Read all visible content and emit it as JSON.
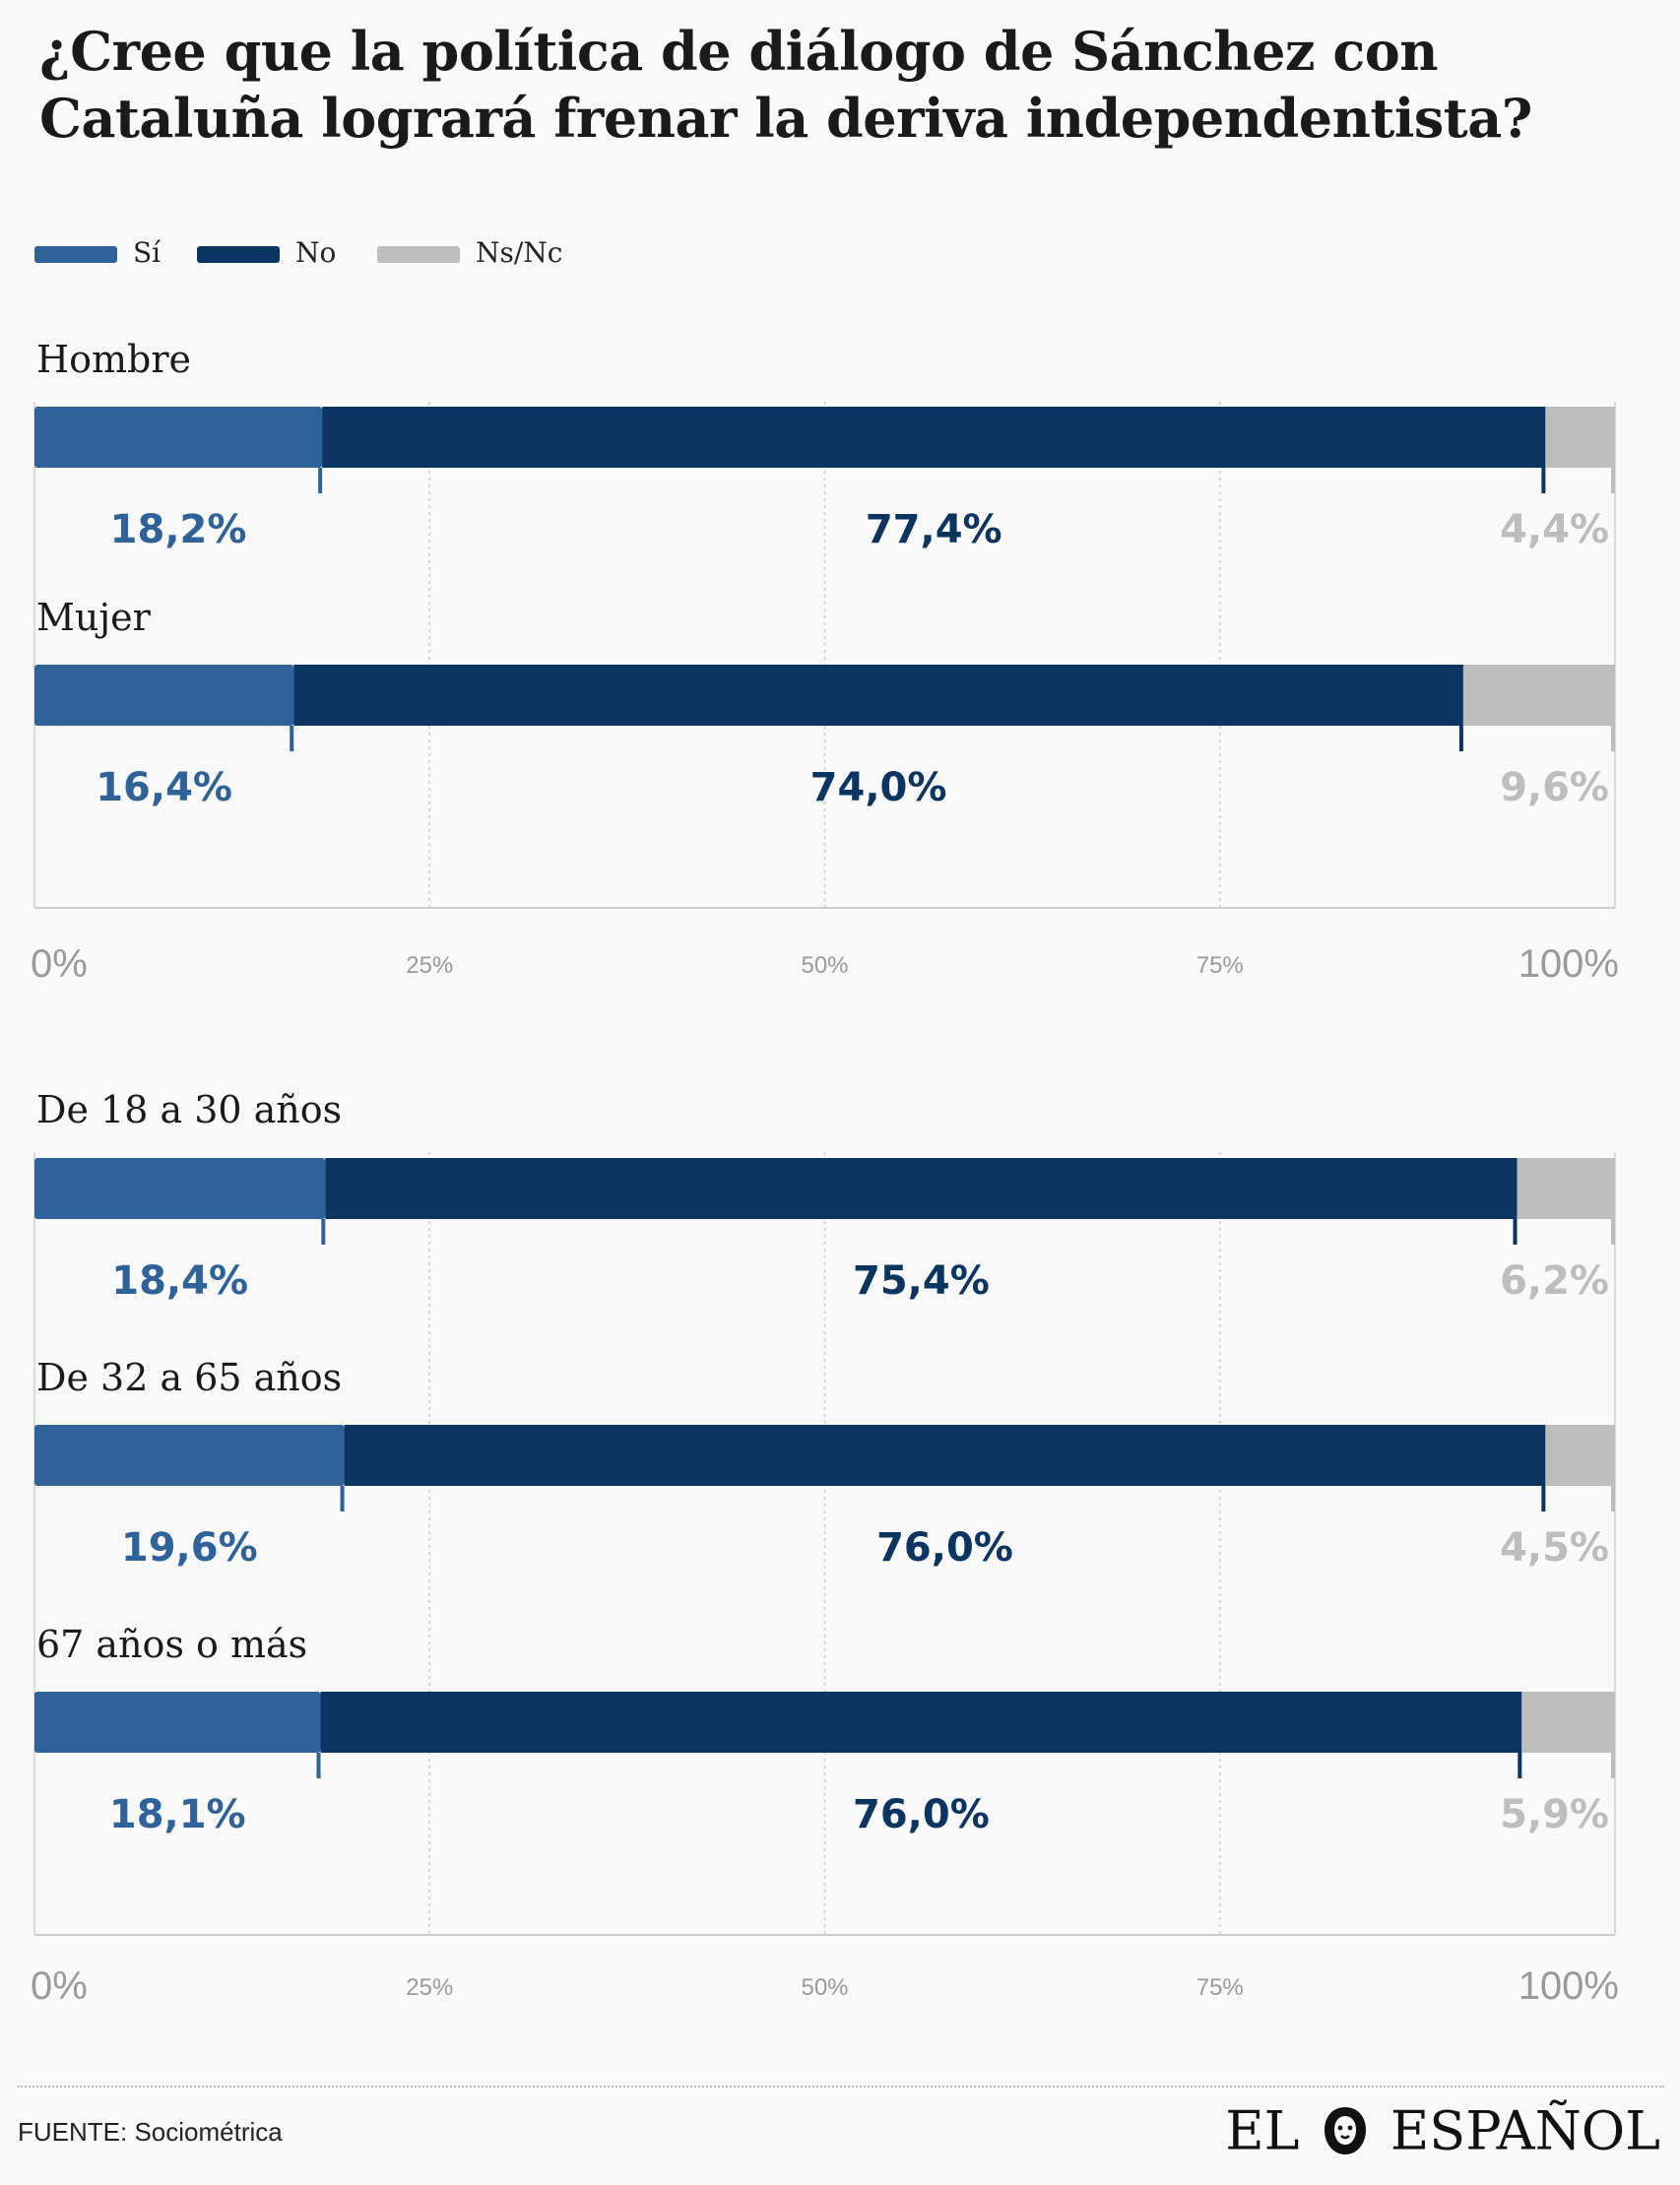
{
  "title": "¿Cree que la política de diálogo de Sánchez con Cataluña logrará frenar la deriva independentista?",
  "legend": [
    {
      "label": "Sí",
      "color": "#2f6299"
    },
    {
      "label": "No",
      "color": "#0c3461"
    },
    {
      "label": "Ns/Nc",
      "color": "#bdbdbd"
    }
  ],
  "colors": {
    "si": "#2f6299",
    "no": "#0c3461",
    "nsnc": "#bdbdbd"
  },
  "chart_data": [
    {
      "type": "bar",
      "orientation": "horizontal",
      "stacked": true,
      "categories": [
        "Hombre",
        "Mujer"
      ],
      "series": [
        {
          "name": "Sí",
          "values": [
            18.2,
            16.4
          ],
          "labels": [
            "18,2%",
            "16,4%"
          ]
        },
        {
          "name": "No",
          "values": [
            77.4,
            74.0
          ],
          "labels": [
            "77,4%",
            "74,0%"
          ]
        },
        {
          "name": "Ns/Nc",
          "values": [
            4.4,
            9.6
          ],
          "labels": [
            "4,4%",
            "9,6%"
          ]
        }
      ],
      "xlim": [
        0,
        100
      ],
      "ticks": [
        "0%",
        "25%",
        "50%",
        "75%",
        "100%"
      ],
      "grid": true
    },
    {
      "type": "bar",
      "orientation": "horizontal",
      "stacked": true,
      "categories": [
        "De 18 a 30 años",
        "De 32 a 65 años",
        "67 años o más"
      ],
      "series": [
        {
          "name": "Sí",
          "values": [
            18.4,
            19.6,
            18.1
          ],
          "labels": [
            "18,4%",
            "19,6%",
            "18,1%"
          ]
        },
        {
          "name": "No",
          "values": [
            75.4,
            76.0,
            76.0
          ],
          "labels": [
            "75,4%",
            "76,0%",
            "76,0%"
          ]
        },
        {
          "name": "Ns/Nc",
          "values": [
            6.2,
            4.5,
            5.9
          ],
          "labels": [
            "6,2%",
            "4,5%",
            "5,9%"
          ]
        }
      ],
      "xlim": [
        0,
        100
      ],
      "ticks": [
        "0%",
        "25%",
        "50%",
        "75%",
        "100%"
      ],
      "grid": true
    }
  ],
  "source": "FUENTE: Sociométrica",
  "logo": {
    "left": "EL",
    "right": "ESPAÑOL",
    "icon": "lion-head-icon"
  }
}
